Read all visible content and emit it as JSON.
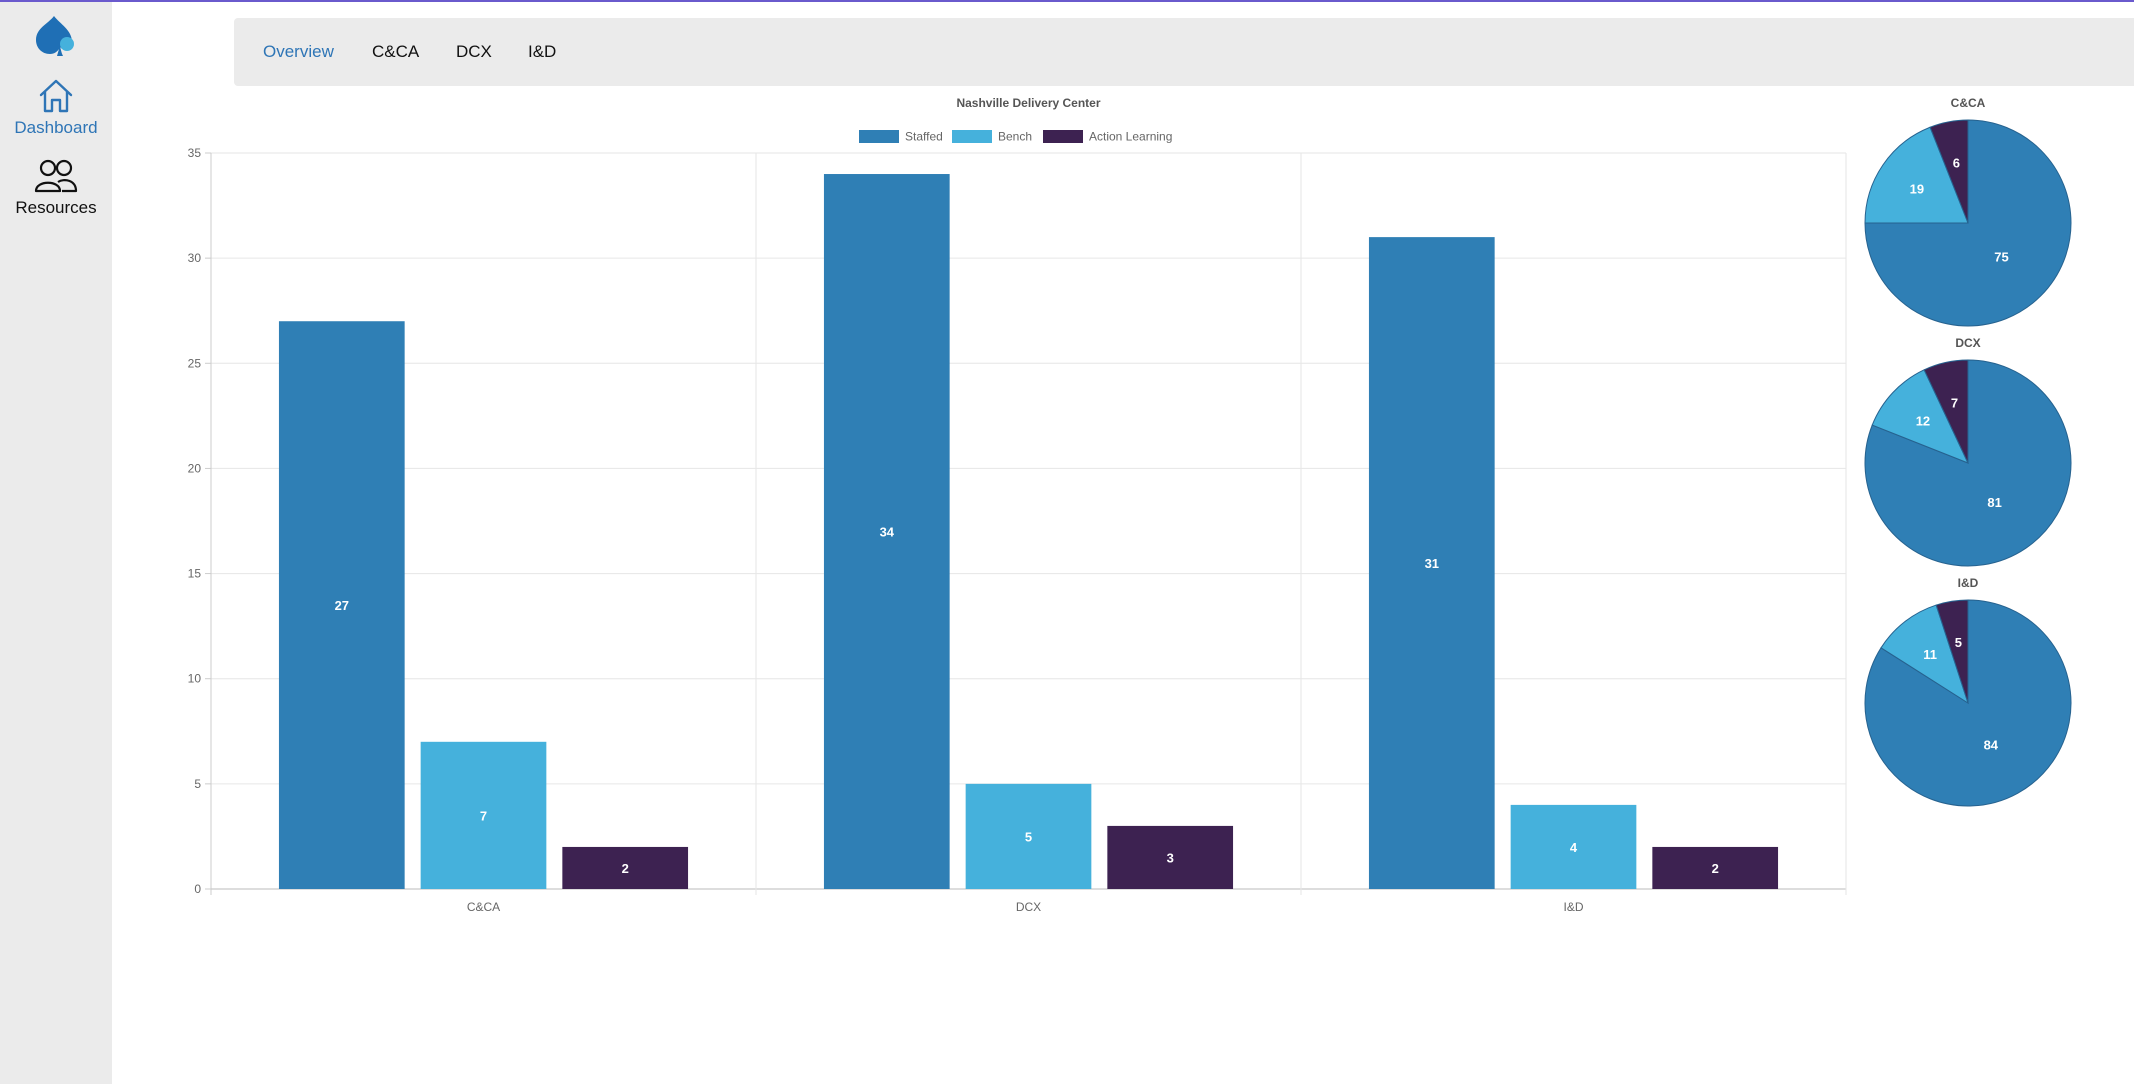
{
  "sidebar": {
    "items": [
      {
        "label": "Dashboard",
        "icon": "home-icon",
        "active": true
      },
      {
        "label": "Resources",
        "icon": "users-icon",
        "active": false
      }
    ]
  },
  "tabs": [
    {
      "label": "Overview",
      "active": true
    },
    {
      "label": "C&CA",
      "active": false
    },
    {
      "label": "DCX",
      "active": false
    },
    {
      "label": "I&D",
      "active": false
    }
  ],
  "colors": {
    "staffed": "#2f7fb5",
    "bench": "#45b1dc",
    "action_learning": "#3d2251",
    "accent": "#2e75b6"
  },
  "chart_data": [
    {
      "type": "bar",
      "title": "Nashville Delivery Center",
      "categories": [
        "C&CA",
        "DCX",
        "I&D"
      ],
      "series": [
        {
          "name": "Staffed",
          "values": [
            27,
            34,
            31
          ]
        },
        {
          "name": "Bench",
          "values": [
            7,
            5,
            4
          ]
        },
        {
          "name": "Action Learning",
          "values": [
            2,
            3,
            2
          ]
        }
      ],
      "ylim": [
        0,
        35
      ],
      "yticks": [
        0,
        5,
        10,
        15,
        20,
        25,
        30,
        35
      ],
      "legend": "top",
      "grid": true,
      "data_labels": true
    },
    {
      "type": "pie",
      "title": "C&CA",
      "labels": [
        "Staffed",
        "Bench",
        "Action Learning"
      ],
      "values": [
        75,
        19,
        6
      ]
    },
    {
      "type": "pie",
      "title": "DCX",
      "labels": [
        "Staffed",
        "Bench",
        "Action Learning"
      ],
      "values": [
        81,
        12,
        7
      ]
    },
    {
      "type": "pie",
      "title": "I&D",
      "labels": [
        "Staffed",
        "Bench",
        "Action Learning"
      ],
      "values": [
        84,
        11,
        5
      ]
    }
  ]
}
